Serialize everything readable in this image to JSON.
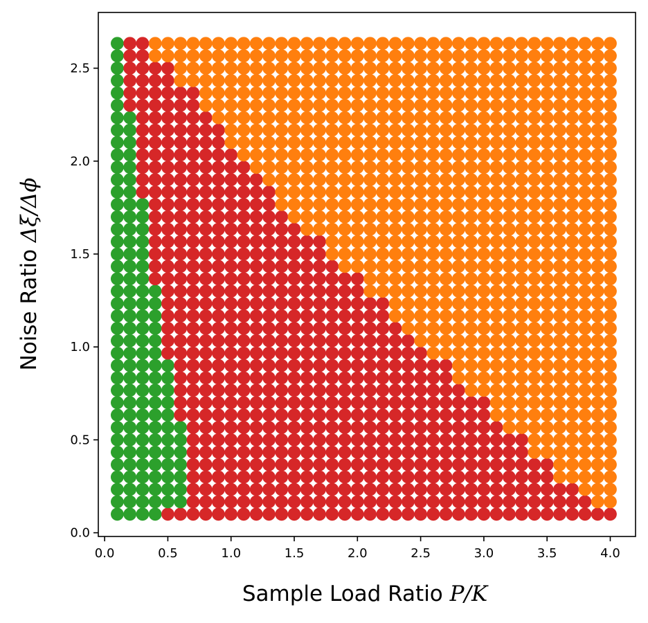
{
  "chart_data": {
    "type": "scatter",
    "title": "",
    "xlabel_prefix": "Sample Load Ratio ",
    "xlabel_symbol": "P/K",
    "ylabel_prefix": "Noise Ratio ",
    "ylabel_symbol": "Δξ/Δϕ",
    "xlim": [
      -0.05,
      4.2
    ],
    "ylim": [
      -0.02,
      2.8
    ],
    "xticks": [
      0.0,
      0.5,
      1.0,
      1.5,
      2.0,
      2.5,
      3.0,
      3.5,
      4.0
    ],
    "xtick_labels": [
      "0.0",
      "0.5",
      "1.0",
      "1.5",
      "2.0",
      "2.5",
      "3.0",
      "3.5",
      "4.0"
    ],
    "yticks": [
      0.0,
      0.5,
      1.0,
      1.5,
      2.0,
      2.5
    ],
    "ytick_labels": [
      "0.0",
      "0.5",
      "1.0",
      "1.5",
      "2.0",
      "2.5"
    ],
    "grid": false,
    "x_grid": {
      "start": 0.1,
      "step": 0.1,
      "count": 40
    },
    "y_grid": {
      "start": 0.1,
      "step": 0.0666667,
      "count": 39
    },
    "colors": {
      "green": "#2ca02c",
      "red": "#d62728",
      "orange": "#ff7f0e"
    },
    "green_max_col_by_row": [
      4,
      6,
      6,
      6,
      6,
      6,
      6,
      6,
      5,
      5,
      5,
      5,
      5,
      4,
      4,
      4,
      4,
      4,
      4,
      3,
      3,
      3,
      3,
      3,
      3,
      3,
      2,
      2,
      2,
      2,
      2,
      2,
      2,
      1,
      1,
      1,
      1,
      1,
      1
    ],
    "red_max_col_by_row": [
      40,
      38,
      37,
      35,
      35,
      33,
      33,
      31,
      30,
      30,
      28,
      27,
      27,
      25,
      24,
      23,
      22,
      22,
      20,
      20,
      18,
      17,
      17,
      15,
      14,
      13,
      13,
      12,
      11,
      10,
      9,
      9,
      8,
      7,
      7,
      5,
      5,
      3,
      3
    ]
  }
}
